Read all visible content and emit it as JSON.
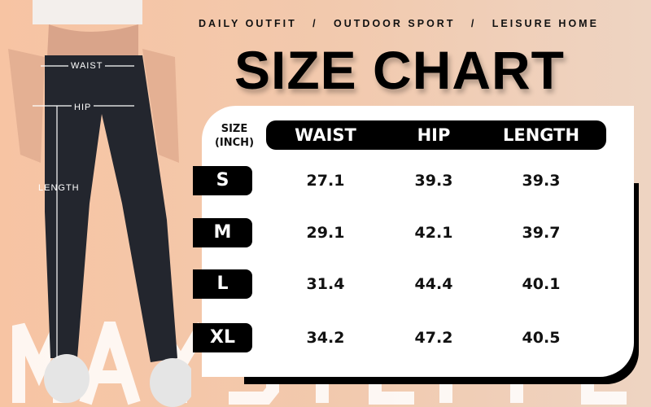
{
  "watermark": "MAYSTEPPE",
  "tagline": "DAILY OUTFIT   /   OUTDOOR SPORT   /   LEISURE HOME",
  "title": "SIZE CHART",
  "measure_labels": {
    "waist": "WAIST",
    "hip": "HIP",
    "length": "LENGTH"
  },
  "table": {
    "size_header": [
      "SIZE",
      "(INCH)"
    ],
    "columns": [
      "WAIST",
      "HIP",
      "LENGTH"
    ],
    "rows": [
      {
        "size": "S",
        "values": [
          "27.1",
          "39.3",
          "39.3"
        ]
      },
      {
        "size": "M",
        "values": [
          "29.1",
          "42.1",
          "39.7"
        ]
      },
      {
        "size": "L",
        "values": [
          "31.4",
          "44.4",
          "40.1"
        ]
      },
      {
        "size": "XL",
        "values": [
          "34.2",
          "47.2",
          "40.5"
        ]
      }
    ]
  },
  "colors": {
    "background": "#f7c4a3",
    "card": "#ffffff",
    "header": "#000000",
    "pants": "#23262e"
  }
}
